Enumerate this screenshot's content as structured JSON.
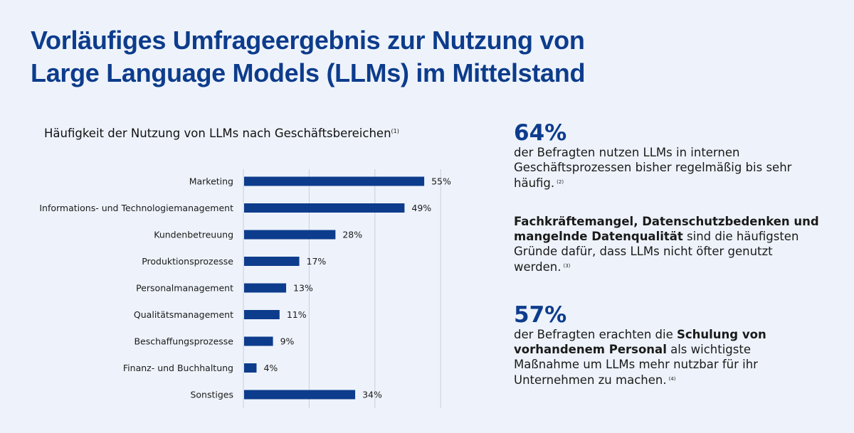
{
  "title": {
    "line1": "Vorläufiges Umfrageergebnis zur Nutzung von",
    "line2": "Large Language Models (LLMs) im Mittelstand"
  },
  "colors": {
    "title": "#0d3c8c",
    "bar": "#0d3c8c",
    "background": "#eef3fb",
    "grid": "#c9ced8"
  },
  "chart_data": {
    "type": "bar",
    "orientation": "horizontal",
    "title": "Häufigkeit der Nutzung von LLMs nach Geschäftsbereichen",
    "title_footnote": "(1)",
    "categories": [
      "Marketing",
      "Informations- und Technologiemanagement",
      "Kundenbetreuung",
      "Produktionsprozesse",
      "Personalmanagement",
      "Qualitätsmanagement",
      "Beschaffungsprozesse",
      "Finanz- und Buchhaltung",
      "Sonstiges"
    ],
    "values": [
      55,
      49,
      28,
      17,
      13,
      11,
      9,
      4,
      34
    ],
    "value_labels": [
      "55%",
      "49%",
      "28%",
      "17%",
      "13%",
      "11%",
      "9%",
      "4%",
      "34%"
    ],
    "unit": "%",
    "xlim": [
      0,
      60
    ],
    "gridlines_at": [
      0,
      20,
      40,
      60
    ],
    "grid": true,
    "xlabel": "",
    "ylabel": "",
    "legend": "none"
  },
  "kpis": [
    {
      "number": "64%",
      "segments": [
        {
          "text": "der Befragten nutzen LLMs in internen Geschäftsprozessen bisher regelmäßig bis sehr häufig.",
          "bold": false
        }
      ],
      "footnote": "(2)"
    },
    {
      "number": "",
      "segments": [
        {
          "text": "Fachkräftemangel, Datenschutzbedenken und mangelnde Datenqualität",
          "bold": true
        },
        {
          "text": " sind die häufigsten Gründe dafür, dass LLMs nicht öfter genutzt werden.",
          "bold": false
        }
      ],
      "footnote": "(3)"
    },
    {
      "number": "57%",
      "segments": [
        {
          "text": "der Befragten erachten die ",
          "bold": false
        },
        {
          "text": "Schulung von vorhandenem Personal",
          "bold": true
        },
        {
          "text": " als wichtigste Maßnahme um LLMs mehr nutzbar für ihr Unternehmen zu machen.",
          "bold": false
        }
      ],
      "footnote": "(4)"
    }
  ]
}
